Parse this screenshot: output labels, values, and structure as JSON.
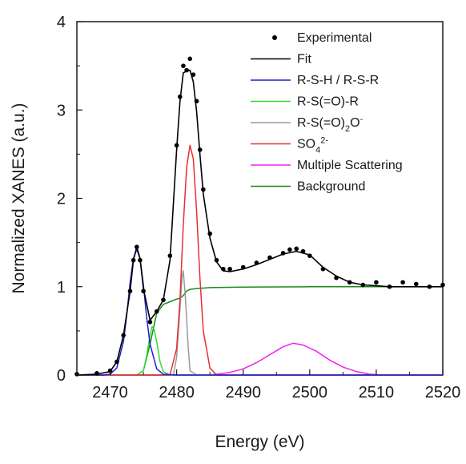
{
  "chart_data": {
    "type": "line",
    "xlabel": "Energy (eV)",
    "ylabel": "Normalized XANES (a.u.)",
    "xlim": [
      2465,
      2520
    ],
    "ylim": [
      0,
      4
    ],
    "x_ticks": [
      2470,
      2480,
      2490,
      2500,
      2510,
      2520
    ],
    "y_ticks": [
      0,
      1,
      2,
      3,
      4
    ],
    "x_tick_labels": [
      "2470",
      "2480",
      "2490",
      "2500",
      "2510",
      "2520"
    ],
    "y_tick_labels": [
      "0",
      "1",
      "2",
      "3",
      "4"
    ],
    "grid": false,
    "legend_position": "top-right",
    "series": [
      {
        "name": "Experimental",
        "kind": "scatter",
        "color": "#000000",
        "x": [
          2465,
          2468,
          2470,
          2471,
          2472,
          2473,
          2473.5,
          2474,
          2474.5,
          2475,
          2476,
          2477,
          2478,
          2479,
          2480,
          2480.5,
          2481,
          2481.5,
          2482,
          2482.5,
          2483,
          2483.5,
          2484,
          2485,
          2486,
          2487,
          2488,
          2490,
          2492,
          2494,
          2496,
          2497,
          2498,
          2499,
          2500,
          2502,
          2504,
          2506,
          2508,
          2510,
          2512,
          2514,
          2516,
          2518,
          2520
        ],
        "y": [
          0.01,
          0.02,
          0.05,
          0.15,
          0.45,
          0.95,
          1.3,
          1.45,
          1.3,
          0.95,
          0.6,
          0.72,
          0.85,
          1.35,
          2.6,
          3.15,
          3.5,
          3.45,
          3.58,
          3.4,
          3.1,
          2.55,
          2.1,
          1.6,
          1.3,
          1.2,
          1.2,
          1.22,
          1.27,
          1.33,
          1.38,
          1.42,
          1.43,
          1.4,
          1.35,
          1.2,
          1.1,
          1.05,
          1.02,
          1.05,
          1.0,
          1.05,
          1.03,
          1.0,
          1.02
        ]
      },
      {
        "name": "Fit",
        "kind": "line",
        "color": "#000000",
        "x": [
          2465,
          2468,
          2470,
          2471,
          2472,
          2473,
          2473.5,
          2474,
          2474.5,
          2475,
          2476,
          2477,
          2478,
          2479,
          2480,
          2480.5,
          2481,
          2481.5,
          2482,
          2482.5,
          2483,
          2483.5,
          2484,
          2485,
          2486,
          2487,
          2488,
          2490,
          2492,
          2494,
          2496,
          2498,
          2500,
          2502,
          2504,
          2506,
          2508,
          2510,
          2512,
          2515,
          2520
        ],
        "y": [
          0.0,
          0.01,
          0.04,
          0.15,
          0.45,
          0.95,
          1.3,
          1.45,
          1.32,
          0.98,
          0.62,
          0.72,
          0.85,
          1.3,
          2.55,
          3.1,
          3.42,
          3.44,
          3.45,
          3.32,
          2.98,
          2.5,
          2.05,
          1.55,
          1.28,
          1.18,
          1.17,
          1.2,
          1.25,
          1.31,
          1.37,
          1.4,
          1.36,
          1.22,
          1.12,
          1.05,
          1.02,
          1.01,
          1.0,
          1.0,
          1.0
        ]
      },
      {
        "name": "R-S-H / R-S-R",
        "kind": "line",
        "color": "#1f1fd0",
        "x": [
          2465,
          2469,
          2470,
          2471,
          2472,
          2472.5,
          2473,
          2473.5,
          2474,
          2474.5,
          2475,
          2475.5,
          2476,
          2477,
          2478,
          2480,
          2520
        ],
        "y": [
          0,
          0,
          0.01,
          0.08,
          0.38,
          0.68,
          1.05,
          1.32,
          1.42,
          1.32,
          1.02,
          0.65,
          0.35,
          0.07,
          0.01,
          0,
          0
        ]
      },
      {
        "name": "R-S(=O)-R",
        "kind": "line",
        "color": "#33dd33",
        "x": [
          2465,
          2474,
          2475,
          2475.5,
          2476,
          2476.3,
          2476.6,
          2477,
          2477.5,
          2478,
          2479,
          2520
        ],
        "y": [
          0,
          0,
          0.05,
          0.22,
          0.45,
          0.55,
          0.52,
          0.38,
          0.15,
          0.04,
          0,
          0
        ]
      },
      {
        "name": "R-S(=O)2O-",
        "kind": "line",
        "color": "#999999",
        "x": [
          2465,
          2479.5,
          2480,
          2480.5,
          2480.8,
          2481,
          2481.3,
          2481.7,
          2482,
          2483,
          2520
        ],
        "y": [
          0,
          0,
          0.2,
          0.75,
          1.1,
          1.18,
          0.9,
          0.35,
          0.05,
          0,
          0
        ]
      },
      {
        "name": "SO42-",
        "kind": "line",
        "color": "#e63030",
        "x": [
          2465,
          2479,
          2480,
          2480.5,
          2481,
          2481.5,
          2482,
          2482.5,
          2483,
          2483.5,
          2484,
          2485,
          2486,
          2520
        ],
        "y": [
          0,
          0,
          0.3,
          0.85,
          1.7,
          2.35,
          2.6,
          2.45,
          1.85,
          1.1,
          0.5,
          0.08,
          0,
          0
        ]
      },
      {
        "name": "Multiple Scattering",
        "kind": "line",
        "color": "#ee22ee",
        "x": [
          2465,
          2485,
          2488,
          2490,
          2492,
          2494,
          2496,
          2497.5,
          2499,
          2501,
          2503,
          2505,
          2507,
          2509,
          2511,
          2520
        ],
        "y": [
          0,
          0,
          0.03,
          0.07,
          0.14,
          0.23,
          0.32,
          0.36,
          0.34,
          0.27,
          0.17,
          0.09,
          0.04,
          0.01,
          0,
          0
        ]
      },
      {
        "name": "Background",
        "kind": "line",
        "color": "#1a8a1a",
        "x": [
          2465,
          2474,
          2475,
          2476,
          2477,
          2478,
          2479,
          2480,
          2480.5,
          2481,
          2481.5,
          2482,
          2483,
          2485,
          2490,
          2500,
          2510,
          2520
        ],
        "y": [
          0,
          0,
          0.05,
          0.35,
          0.7,
          0.8,
          0.83,
          0.86,
          0.87,
          0.9,
          0.95,
          0.97,
          0.98,
          0.99,
          0.995,
          1.0,
          1.0,
          1.0
        ]
      }
    ],
    "legend": [
      {
        "label_html": "Experimental",
        "marker": "dot",
        "color": "#000000"
      },
      {
        "label_html": "Fit",
        "marker": "line",
        "color": "#000000"
      },
      {
        "label_html": "R-S-H / R-S-R",
        "marker": "line",
        "color": "#1f1fd0"
      },
      {
        "label_html": "R-S(=O)-R",
        "marker": "line",
        "color": "#33dd33"
      },
      {
        "label_html": "R-S(=O)<tspan baseline-shift=\"sub\" font-size=\"11\">2</tspan>O<tspan baseline-shift=\"super\" font-size=\"11\">-</tspan>",
        "marker": "line",
        "color": "#999999"
      },
      {
        "label_html": "SO<tspan baseline-shift=\"sub\" font-size=\"11\">4</tspan><tspan baseline-shift=\"super\" font-size=\"11\">2-</tspan>",
        "marker": "line",
        "color": "#e63030"
      },
      {
        "label_html": "Multiple Scattering",
        "marker": "line",
        "color": "#ee22ee"
      },
      {
        "label_html": "Background",
        "marker": "line",
        "color": "#1a8a1a"
      }
    ]
  }
}
